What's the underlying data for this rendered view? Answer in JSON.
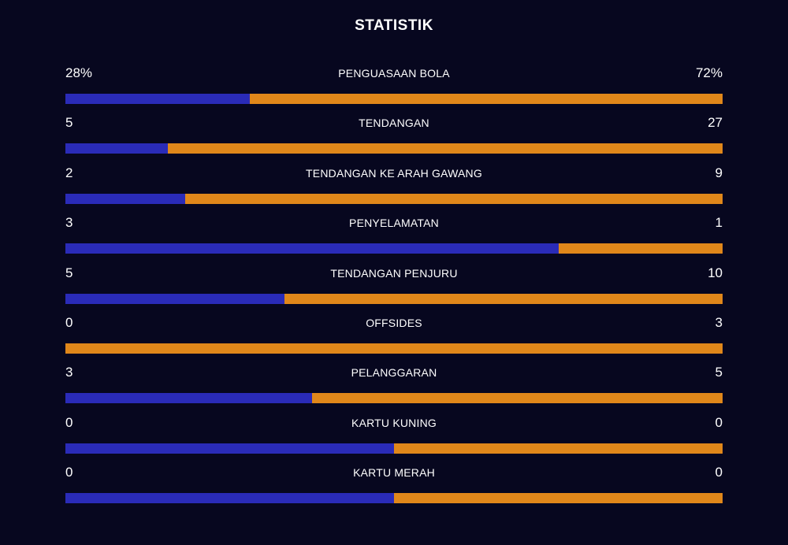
{
  "title": "STATISTIK",
  "colors": {
    "background": "#07071f",
    "home_bar": "#2a2bb8",
    "away_bar": "#e0871a",
    "text": "#ffffff"
  },
  "stats": [
    {
      "label": "PENGUASAAN BOLA",
      "home": "28%",
      "away": "72%",
      "home_share": 0.28
    },
    {
      "label": "TENDANGAN",
      "home": "5",
      "away": "27",
      "home_share": 0.156
    },
    {
      "label": "TENDANGAN KE ARAH GAWANG",
      "home": "2",
      "away": "9",
      "home_share": 0.182
    },
    {
      "label": "PENYELAMATAN",
      "home": "3",
      "away": "1",
      "home_share": 0.75
    },
    {
      "label": "TENDANGAN PENJURU",
      "home": "5",
      "away": "10",
      "home_share": 0.333
    },
    {
      "label": "OFFSIDES",
      "home": "0",
      "away": "3",
      "home_share": 0
    },
    {
      "label": "PELANGGARAN",
      "home": "3",
      "away": "5",
      "home_share": 0.375
    },
    {
      "label": "KARTU KUNING",
      "home": "0",
      "away": "0",
      "home_share": 0.5
    },
    {
      "label": "KARTU MERAH",
      "home": "0",
      "away": "0",
      "home_share": 0.5
    }
  ]
}
